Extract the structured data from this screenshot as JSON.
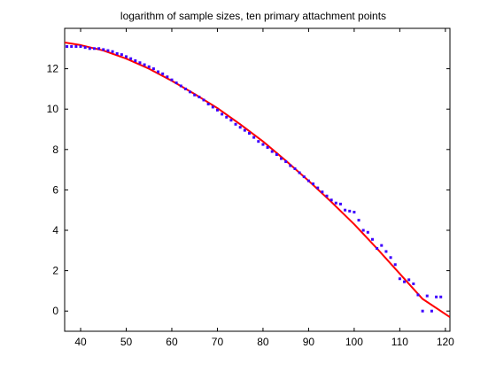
{
  "chart_data": {
    "type": "scatter",
    "title": "logarithm of sample sizes, ten primary attachment points",
    "xlabel": "",
    "ylabel": "",
    "xlim": [
      36.5,
      121
    ],
    "ylim": [
      -1,
      14
    ],
    "x_ticks": [
      40,
      50,
      60,
      70,
      80,
      90,
      100,
      110,
      120
    ],
    "y_ticks": [
      0,
      2,
      4,
      6,
      8,
      10,
      12
    ],
    "grid": false,
    "legend": "none",
    "colors": {
      "points": "#3d00ff",
      "fit": "#ff0000"
    },
    "series": [
      {
        "kind": "points",
        "x": [
          37,
          38,
          39,
          40,
          41,
          42,
          43,
          44,
          45,
          46,
          47,
          48,
          49,
          50,
          51,
          52,
          53,
          54,
          55,
          56,
          57,
          58,
          59,
          60,
          61,
          62,
          63,
          64,
          65,
          66,
          67,
          68,
          69,
          70,
          71,
          72,
          73,
          74,
          75,
          76,
          77,
          78,
          79,
          80,
          81,
          82,
          83,
          84,
          85,
          86,
          87,
          88,
          89,
          90,
          91,
          92,
          93,
          94,
          95,
          96,
          97,
          98,
          99,
          100,
          101,
          102,
          103,
          104,
          105,
          106,
          107,
          108,
          109,
          110,
          111,
          112,
          113,
          114,
          115,
          116,
          117,
          118,
          119
        ],
        "y": [
          13.1,
          13.1,
          13.1,
          13.1,
          13.05,
          13.0,
          13.0,
          13.0,
          12.95,
          12.9,
          12.85,
          12.75,
          12.7,
          12.6,
          12.5,
          12.4,
          12.3,
          12.2,
          12.1,
          12.0,
          11.85,
          11.75,
          11.6,
          11.45,
          11.3,
          11.15,
          11.0,
          10.85,
          10.7,
          10.6,
          10.45,
          10.25,
          10.1,
          9.95,
          9.75,
          9.6,
          9.45,
          9.25,
          9.1,
          8.95,
          8.8,
          8.6,
          8.4,
          8.25,
          8.1,
          7.9,
          7.75,
          7.55,
          7.4,
          7.2,
          7.05,
          6.85,
          6.65,
          6.45,
          6.3,
          6.1,
          5.9,
          5.7,
          5.5,
          5.35,
          5.3,
          5.0,
          4.95,
          4.9,
          4.5,
          4.0,
          3.9,
          3.55,
          3.1,
          3.25,
          2.95,
          2.65,
          2.3,
          1.6,
          1.45,
          1.55,
          1.35,
          0.8,
          0.0,
          0.75,
          0.0,
          0.7,
          0.7
        ]
      },
      {
        "kind": "line",
        "x": [
          36.5,
          40,
          45,
          50,
          55,
          60,
          65,
          70,
          75,
          80,
          85,
          90,
          95,
          100,
          105,
          110,
          115,
          121
        ],
        "y": [
          13.3,
          13.17,
          12.9,
          12.5,
          12.0,
          11.4,
          10.75,
          10.05,
          9.25,
          8.4,
          7.45,
          6.45,
          5.4,
          4.3,
          3.1,
          1.85,
          0.6,
          -0.3
        ]
      }
    ]
  }
}
